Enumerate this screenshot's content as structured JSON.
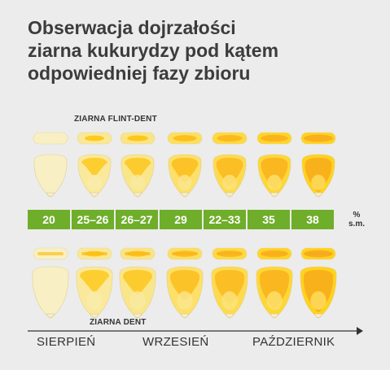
{
  "title": {
    "line1": "Obserwacja dojrzałości",
    "line2": "ziarna kukurydzy pod kątem",
    "line3": "odpowiedniej fazy zbioru"
  },
  "top_label": "ZIARNA FLINT-DENT",
  "bottom_label": "ZIARNA DENT",
  "moisture": [
    "20",
    "25–26",
    "26–27",
    "29",
    "22–33",
    "35",
    "38"
  ],
  "unit": {
    "line1": "%",
    "line2": "s.m."
  },
  "months": [
    "SIERPIEŃ",
    "WRZESIEŃ",
    "PAŹDZIERNIK"
  ],
  "colors": {
    "bar_green": "#6fae2a",
    "kernel_pale": "#f8f0c4",
    "kernel_yellow": "#ffd21e",
    "kernel_orange": "#f7a81b",
    "background": "#ececec"
  }
}
